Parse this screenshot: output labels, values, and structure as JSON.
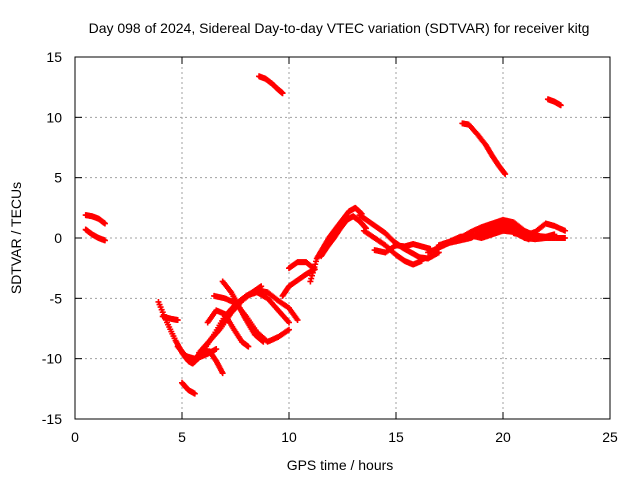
{
  "chart_data": {
    "type": "scatter",
    "title": "Day 098 of 2024, Sidereal Day-to-day VTEC variation (SDTVAR) for receiver kitg",
    "xlabel": "GPS time / hours",
    "ylabel": "SDTVAR / TECUs",
    "xlim": [
      0,
      25
    ],
    "ylim": [
      -15,
      15
    ],
    "xticks": [
      "0",
      "5",
      "10",
      "15",
      "20",
      "25"
    ],
    "yticks": [
      "15",
      "10",
      "5",
      "0",
      "-5",
      "-10",
      "-15"
    ],
    "xtick_values": [
      0,
      5,
      10,
      15,
      20,
      25
    ],
    "ytick_values": [
      15,
      10,
      5,
      0,
      -5,
      -10,
      -15
    ],
    "grid": true,
    "marker": "plus",
    "series": [
      {
        "name": "SDTVAR",
        "color": "#ff0000",
        "tracks": [
          [
            [
              0.5,
              1.9
            ],
            [
              0.8,
              1.8
            ],
            [
              1.1,
              1.6
            ],
            [
              1.4,
              1.2
            ]
          ],
          [
            [
              0.5,
              0.7
            ],
            [
              0.8,
              0.3
            ],
            [
              1.1,
              0.0
            ],
            [
              1.4,
              -0.2
            ]
          ],
          [
            [
              3.9,
              -5.3
            ],
            [
              4.3,
              -7.0
            ],
            [
              4.7,
              -8.5
            ],
            [
              5.0,
              -9.5
            ],
            [
              5.3,
              -10.2
            ],
            [
              5.5,
              -10.4
            ],
            [
              5.8,
              -9.9
            ],
            [
              6.2,
              -9.6
            ],
            [
              6.6,
              -9.2
            ]
          ],
          [
            [
              4.1,
              -6.5
            ],
            [
              4.5,
              -6.7
            ],
            [
              4.8,
              -6.8
            ]
          ],
          [
            [
              4.8,
              -9.0
            ],
            [
              5.2,
              -9.8
            ],
            [
              5.6,
              -10.0
            ],
            [
              6.0,
              -9.4
            ],
            [
              6.3,
              -9.4
            ],
            [
              6.6,
              -10.2
            ],
            [
              6.9,
              -11.2
            ]
          ],
          [
            [
              5.0,
              -12.0
            ],
            [
              5.3,
              -12.6
            ],
            [
              5.6,
              -12.9
            ]
          ],
          [
            [
              5.6,
              -10.0
            ],
            [
              6.0,
              -9.3
            ],
            [
              6.5,
              -8.0
            ],
            [
              7.0,
              -6.5
            ],
            [
              7.5,
              -5.5
            ],
            [
              8.0,
              -4.8
            ],
            [
              8.5,
              -4.5
            ],
            [
              9.0,
              -5.0
            ],
            [
              9.5,
              -6.0
            ],
            [
              10.0,
              -7.0
            ]
          ],
          [
            [
              5.8,
              -9.5
            ],
            [
              6.3,
              -8.5
            ],
            [
              6.8,
              -7.5
            ],
            [
              7.3,
              -6.2
            ],
            [
              7.8,
              -5.2
            ],
            [
              8.3,
              -4.5
            ],
            [
              8.7,
              -4.0
            ]
          ],
          [
            [
              6.2,
              -7.0
            ],
            [
              6.6,
              -6.0
            ],
            [
              7.0,
              -6.3
            ],
            [
              7.4,
              -7.5
            ],
            [
              7.8,
              -8.6
            ],
            [
              8.1,
              -9.0
            ]
          ],
          [
            [
              6.5,
              -4.8
            ],
            [
              7.0,
              -5.0
            ],
            [
              7.5,
              -5.4
            ],
            [
              8.0,
              -6.5
            ],
            [
              8.5,
              -7.8
            ],
            [
              9.0,
              -8.6
            ],
            [
              9.5,
              -8.2
            ],
            [
              10.0,
              -7.6
            ]
          ],
          [
            [
              6.9,
              -3.6
            ],
            [
              7.3,
              -4.5
            ],
            [
              7.7,
              -5.8
            ],
            [
              8.0,
              -6.8
            ],
            [
              8.4,
              -8.0
            ],
            [
              8.8,
              -8.6
            ]
          ],
          [
            [
              7.0,
              -7.0
            ],
            [
              7.5,
              -5.5
            ],
            [
              8.0,
              -4.8
            ],
            [
              8.5,
              -4.3
            ],
            [
              9.0,
              -4.5
            ],
            [
              9.5,
              -5.2
            ],
            [
              10.0,
              -5.8
            ],
            [
              10.4,
              -6.8
            ]
          ],
          [
            [
              9.7,
              -4.8
            ],
            [
              10.0,
              -4.0
            ],
            [
              10.4,
              -3.5
            ],
            [
              10.8,
              -3.0
            ],
            [
              11.2,
              -2.6
            ]
          ],
          [
            [
              10.0,
              -2.5
            ],
            [
              10.4,
              -2.0
            ],
            [
              10.8,
              -2.0
            ],
            [
              11.2,
              -2.6
            ]
          ],
          [
            [
              11.0,
              -3.6
            ],
            [
              11.3,
              -1.7
            ],
            [
              11.6,
              -0.8
            ],
            [
              11.9,
              0.1
            ],
            [
              12.2,
              0.8
            ],
            [
              12.5,
              1.5
            ],
            [
              12.8,
              2.2
            ],
            [
              13.1,
              2.5
            ],
            [
              13.4,
              2.0
            ]
          ],
          [
            [
              11.5,
              -1.5
            ],
            [
              11.8,
              -0.7
            ],
            [
              12.1,
              0.0
            ],
            [
              12.4,
              0.8
            ],
            [
              12.7,
              1.5
            ],
            [
              13.0,
              1.8
            ],
            [
              13.3,
              1.4
            ],
            [
              13.6,
              0.8
            ]
          ],
          [
            [
              13.3,
              1.9
            ],
            [
              13.7,
              1.4
            ],
            [
              14.1,
              0.9
            ],
            [
              14.5,
              0.4
            ],
            [
              14.9,
              -0.3
            ],
            [
              15.3,
              -0.8
            ],
            [
              15.7,
              -1.2
            ],
            [
              16.1,
              -1.6
            ],
            [
              16.5,
              -1.7
            ],
            [
              17.0,
              -1.2
            ]
          ],
          [
            [
              13.5,
              0.6
            ],
            [
              14.0,
              0.0
            ],
            [
              14.5,
              -0.6
            ],
            [
              15.0,
              -1.4
            ],
            [
              15.4,
              -1.9
            ],
            [
              15.8,
              -2.2
            ],
            [
              16.2,
              -1.9
            ]
          ],
          [
            [
              14.0,
              -1.0
            ],
            [
              14.5,
              -1.2
            ],
            [
              15.0,
              -0.6
            ],
            [
              15.4,
              -0.7
            ],
            [
              15.8,
              -0.5
            ],
            [
              16.2,
              -0.7
            ],
            [
              16.6,
              -0.9
            ]
          ],
          [
            [
              16.5,
              -1.2
            ],
            [
              17.0,
              -0.8
            ],
            [
              17.5,
              -0.4
            ],
            [
              18.0,
              -0.2
            ],
            [
              18.5,
              0.0
            ],
            [
              19.0,
              0.5
            ],
            [
              19.5,
              0.9
            ],
            [
              20.0,
              1.2
            ],
            [
              20.5,
              1.0
            ],
            [
              21.0,
              0.5
            ]
          ],
          [
            [
              17.0,
              -0.6
            ],
            [
              17.5,
              -0.3
            ],
            [
              18.0,
              0.1
            ],
            [
              18.5,
              0.2
            ],
            [
              19.0,
              0.0
            ],
            [
              19.5,
              0.3
            ],
            [
              20.0,
              0.6
            ],
            [
              20.5,
              0.5
            ]
          ],
          [
            [
              18.0,
              0.0
            ],
            [
              18.5,
              0.5
            ],
            [
              19.0,
              0.9
            ],
            [
              19.5,
              1.2
            ],
            [
              20.0,
              1.5
            ],
            [
              20.5,
              1.3
            ],
            [
              21.0,
              0.6
            ],
            [
              21.5,
              0.2
            ],
            [
              22.0,
              0.1
            ],
            [
              22.4,
              0.3
            ]
          ],
          [
            [
              19.0,
              0.2
            ],
            [
              19.5,
              0.7
            ],
            [
              20.0,
              0.9
            ],
            [
              20.4,
              0.7
            ],
            [
              20.8,
              0.2
            ],
            [
              21.2,
              -0.1
            ]
          ],
          [
            [
              20.5,
              0.4
            ],
            [
              21.0,
              0.2
            ],
            [
              21.5,
              0.5
            ],
            [
              22.0,
              1.2
            ],
            [
              22.4,
              1.0
            ],
            [
              22.9,
              0.6
            ]
          ],
          [
            [
              21.0,
              0.0
            ],
            [
              21.5,
              -0.1
            ],
            [
              22.0,
              0.0
            ],
            [
              22.5,
              0.0
            ],
            [
              22.9,
              0.0
            ]
          ],
          [
            [
              8.6,
              13.4
            ],
            [
              8.9,
              13.2
            ],
            [
              9.2,
              12.8
            ],
            [
              9.5,
              12.3
            ],
            [
              9.7,
              12.0
            ]
          ],
          [
            [
              18.1,
              9.5
            ],
            [
              18.4,
              9.4
            ],
            [
              18.8,
              8.6
            ],
            [
              19.2,
              7.7
            ],
            [
              19.5,
              6.8
            ],
            [
              19.8,
              6.0
            ],
            [
              20.1,
              5.3
            ]
          ],
          [
            [
              22.1,
              11.5
            ],
            [
              22.4,
              11.3
            ],
            [
              22.7,
              11.0
            ]
          ]
        ]
      }
    ]
  }
}
